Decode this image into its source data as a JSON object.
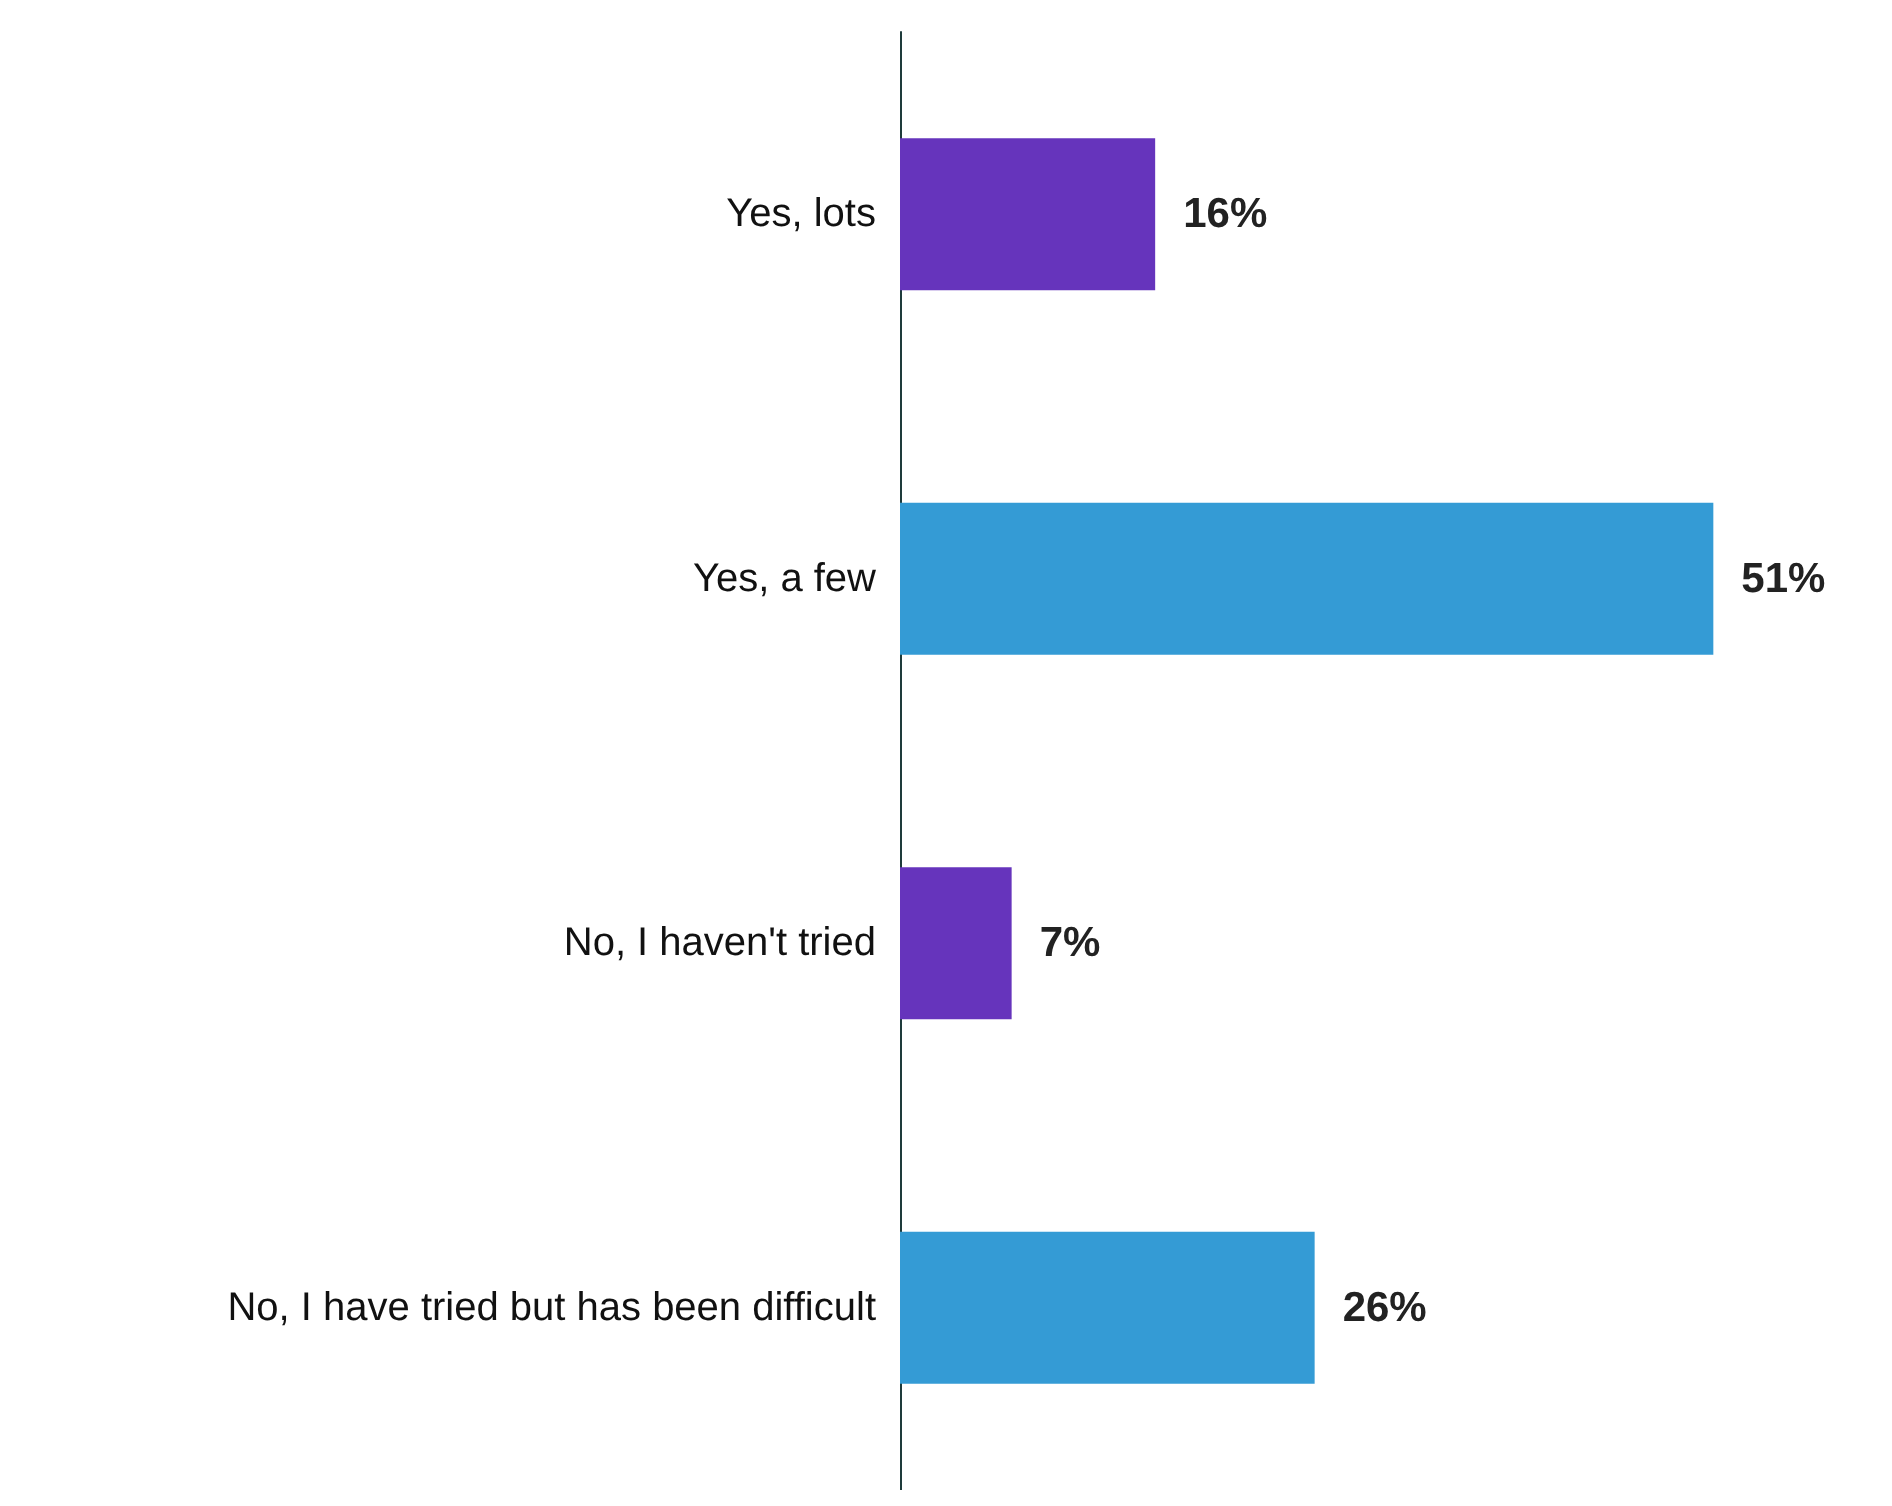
{
  "chart_data": {
    "type": "bar",
    "orientation": "horizontal",
    "categories": [
      "Yes, lots",
      "Yes, a few",
      "No, I haven't tried",
      "No, I have tried but has been difficult"
    ],
    "values": [
      16,
      51,
      7,
      26
    ],
    "value_labels": [
      "16%",
      "51%",
      "7%",
      "26%"
    ],
    "colors": [
      "#6634bc",
      "#349bd5",
      "#6634bc",
      "#349bd5"
    ]
  }
}
